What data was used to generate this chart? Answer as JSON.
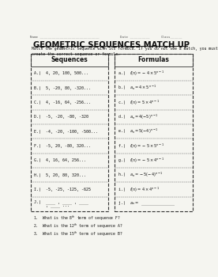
{
  "title": "GEOMETRIC SEQUENCES MATCH UP",
  "name_line": "Name ______________________________",
  "date_line": "Date __________",
  "class_line": "Class______",
  "instruction": "Match the geometric sequence with its formula. If you do not see a match, you must\ncreate the correct sequence or formula.",
  "sequences_header": "Sequences",
  "formulas_header": "Formulas",
  "sequences": [
    "A.)  4, 20, 100, 500...",
    "B.)  5, -20, 80, -320...",
    "C.)  4, -16, 64, -256...",
    "D.)  -5, -20, -80, -320",
    "E.)  -4, -20, -100, -500...",
    "F.)  -5, 20, -80, 320...",
    "G.)  4, 16, 64, 256...",
    "H.)  5, 20, 80, 320...",
    "I.)  -5, -25, -125, -625",
    "J.)  ____ , ____ , ____\n     , ____ ..."
  ],
  "formulas": [
    "a.)  $f(n) = -4 \\times 5^{n-1}$",
    "b.)  $a_n = 4 \\times 5^{n-1}$",
    "c.)  $f(n) = 5 \\times 4^{n-1}$",
    "d.)  $a_n = 4(-5)^{n-1}$",
    "e.)  $a_n = 5(-4)^{n-1}$",
    "f.)  $f(n) = -5 \\times 5^{n-1}$",
    "g.)  $f(n) = -5 \\times 4^{n-1}$",
    "h.)  $a_n = -5(-4)^{n-1}$",
    "i.)  $f(n) = 4 \\times 4^{n-1}$",
    "j.)  $a_n = $ ______________"
  ],
  "questions": [
    "1.  What is the 8$^{th}$ term of sequence F?",
    "2.  What is the 12$^{th}$ term of sequence A?",
    "3.  What is the 15$^{th}$ term of sequence B?"
  ],
  "bg_color": "#f5f5f0",
  "title_color": "#111111",
  "text_color": "#111111"
}
